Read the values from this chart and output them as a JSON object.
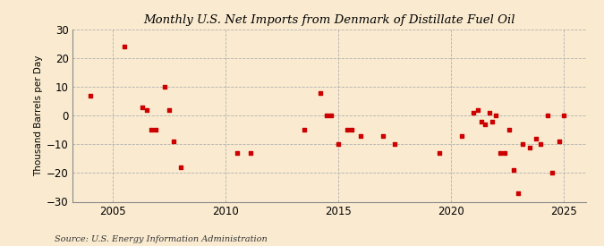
{
  "title": "U.S. Net Imports from Denmark of Distillate Fuel Oil",
  "title_prefix": "Monthly ",
  "ylabel": "Thousand Barrels per Day",
  "source": "Source: U.S. Energy Information Administration",
  "background_color": "#faebd0",
  "plot_bg_color": "#faebd0",
  "dot_color": "#cc0000",
  "grid_color": "#b0b0b0",
  "ylim": [
    -30,
    30
  ],
  "yticks": [
    -30,
    -20,
    -10,
    0,
    10,
    20,
    30
  ],
  "xlim": [
    2003.2,
    2026.0
  ],
  "xticks": [
    2005,
    2010,
    2015,
    2020,
    2025
  ],
  "data_points": [
    [
      2004.0,
      7
    ],
    [
      2005.5,
      24
    ],
    [
      2006.3,
      3
    ],
    [
      2006.5,
      2
    ],
    [
      2006.7,
      -5
    ],
    [
      2006.9,
      -5
    ],
    [
      2007.3,
      10
    ],
    [
      2007.5,
      2
    ],
    [
      2007.7,
      -9
    ],
    [
      2008.0,
      -18
    ],
    [
      2010.5,
      -13
    ],
    [
      2011.1,
      -13
    ],
    [
      2013.5,
      -5
    ],
    [
      2014.2,
      8
    ],
    [
      2014.5,
      0
    ],
    [
      2014.7,
      0
    ],
    [
      2015.0,
      -10
    ],
    [
      2015.4,
      -5
    ],
    [
      2015.6,
      -5
    ],
    [
      2016.0,
      -7
    ],
    [
      2017.0,
      -7
    ],
    [
      2017.5,
      -10
    ],
    [
      2019.5,
      -13
    ],
    [
      2020.5,
      -7
    ],
    [
      2021.0,
      1
    ],
    [
      2021.2,
      2
    ],
    [
      2021.35,
      -2
    ],
    [
      2021.5,
      -3
    ],
    [
      2021.7,
      1
    ],
    [
      2021.85,
      -2
    ],
    [
      2022.0,
      0
    ],
    [
      2022.2,
      -13
    ],
    [
      2022.4,
      -13
    ],
    [
      2022.6,
      -5
    ],
    [
      2022.8,
      -19
    ],
    [
      2023.0,
      -27
    ],
    [
      2023.2,
      -10
    ],
    [
      2023.5,
      -11
    ],
    [
      2023.8,
      -8
    ],
    [
      2024.0,
      -10
    ],
    [
      2024.3,
      0
    ],
    [
      2024.5,
      -20
    ],
    [
      2024.8,
      -9
    ],
    [
      2025.0,
      0
    ]
  ]
}
